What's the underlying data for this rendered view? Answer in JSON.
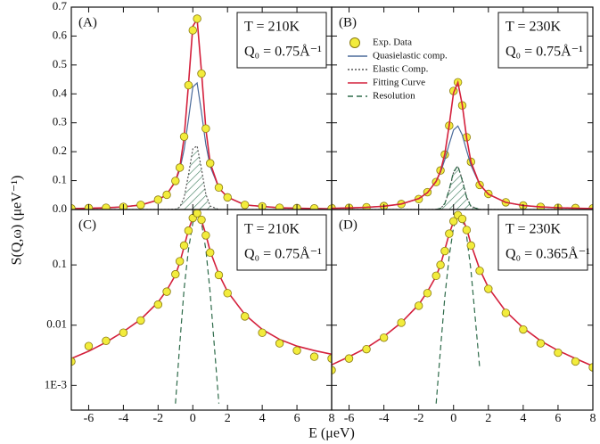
{
  "figure": {
    "xlabel": "E (μeV)",
    "ylabel": "S(Q,ω) (μeV⁻¹)"
  },
  "chart_data": [
    {
      "type": "line",
      "panel_label": "(A)",
      "annotations": [
        "T = 210K",
        "Q₀ = 0.75Å⁻¹"
      ],
      "yscale": "linear",
      "xlim": [
        -7,
        8
      ],
      "ylim": [
        0,
        0.7
      ],
      "xticks": [
        -6,
        -4,
        -2,
        0,
        2,
        4,
        6,
        8
      ],
      "yticks": [
        {
          "value": 0,
          "label": "0.0"
        },
        0.1,
        0.2,
        0.3,
        0.4,
        0.5,
        0.6,
        0.7
      ],
      "show_xtick_labels": false,
      "show_ytick_labels": true,
      "x": [
        -7,
        -6,
        -5,
        -4,
        -3,
        -2,
        -1.5,
        -1,
        -0.75,
        -0.5,
        -0.25,
        0,
        0.25,
        0.5,
        0.75,
        1,
        1.5,
        2,
        3,
        4,
        5,
        6,
        7,
        8
      ],
      "series": [
        {
          "name": "Quasielastic comp.",
          "color": "#4a6a9a",
          "style": "solid",
          "values": [
            0.0031,
            0.0042,
            0.006,
            0.0092,
            0.0157,
            0.0326,
            0.0526,
            0.0964,
            0.138,
            0.207,
            0.312,
            0.424,
            0.438,
            0.336,
            0.225,
            0.15,
            0.0742,
            0.0429,
            0.0157,
            0.0107,
            0.006,
            0.0047,
            0.0034,
            0.0024
          ]
        },
        {
          "name": "Elastic Comp.",
          "color": "#555555",
          "style": "dotted",
          "fill": "hatch",
          "values": [
            0,
            0,
            0,
            0,
            0,
            0,
            0,
            0.001,
            0.0085,
            0.041,
            0.12,
            0.21,
            0.22,
            0.14,
            0.053,
            0.012,
            0.0001,
            0,
            0,
            0,
            0,
            0,
            0,
            0
          ]
        },
        {
          "name": "Fitting Curve",
          "color": "#d4203c",
          "style": "solid",
          "values": [
            0.0031,
            0.0042,
            0.006,
            0.0092,
            0.0157,
            0.0326,
            0.0527,
            0.097,
            0.147,
            0.248,
            0.432,
            0.634,
            0.658,
            0.476,
            0.278,
            0.162,
            0.0743,
            0.0429,
            0.0157,
            0.0107,
            0.006,
            0.0047,
            0.0034,
            0.0024
          ]
        },
        {
          "name": "Exp. Data",
          "color": "#f2ec3c",
          "style": "markers",
          "values": [
            0.004,
            0.005,
            0.006,
            0.009,
            0.016,
            0.034,
            0.051,
            0.099,
            0.145,
            0.252,
            0.43,
            0.62,
            0.66,
            0.47,
            0.28,
            0.16,
            0.076,
            0.042,
            0.016,
            0.011,
            0.006,
            0.005,
            0.004,
            0.003
          ]
        }
      ]
    },
    {
      "type": "line",
      "panel_label": "(B)",
      "annotations": [
        "T = 230K",
        "Q₀ = 0.75Å⁻¹"
      ],
      "legend": "upper left",
      "yscale": "linear",
      "xlim": [
        -7,
        8
      ],
      "ylim": [
        0,
        0.7
      ],
      "xticks": [
        -6,
        -4,
        -2,
        0,
        2,
        4,
        6,
        8
      ],
      "yticks": [
        {
          "value": 0,
          "label": "0.0"
        },
        0.1,
        0.2,
        0.3,
        0.4,
        0.5,
        0.6,
        0.7
      ],
      "show_xtick_labels": false,
      "show_ytick_labels": false,
      "x": [
        -7,
        -6,
        -5,
        -4,
        -3,
        -2,
        -1.5,
        -1,
        -0.75,
        -0.5,
        -0.25,
        0,
        0.25,
        0.5,
        0.75,
        1,
        1.5,
        2,
        3,
        4,
        5,
        6,
        7,
        8
      ],
      "series": [
        {
          "name": "Exp. Data",
          "color": "#f2ec3c",
          "style": "markers",
          "values": [
            0.005,
            0.006,
            0.008,
            0.012,
            0.019,
            0.036,
            0.06,
            0.095,
            0.135,
            0.19,
            0.29,
            0.41,
            0.44,
            0.36,
            0.25,
            0.165,
            0.085,
            0.054,
            0.025,
            0.014,
            0.009,
            0.006,
            0.005,
            0.004
          ]
        },
        {
          "name": "Quasielastic comp.",
          "color": "#4a6a9a",
          "style": "solid",
          "values": [
            0.004,
            0.0054,
            0.0076,
            0.0114,
            0.0192,
            0.0377,
            0.058,
            0.097,
            0.129,
            0.173,
            0.227,
            0.275,
            0.289,
            0.258,
            0.204,
            0.153,
            0.0868,
            0.0529,
            0.0246,
            0.0138,
            0.0088,
            0.0061,
            0.0045,
            0.0034
          ]
        },
        {
          "name": "Elastic Comp.",
          "color": "#555555",
          "style": "dotted",
          "fill": "hatch",
          "values": [
            0,
            0,
            0,
            0,
            0,
            0,
            0,
            0.0004,
            0.0037,
            0.02,
            0.066,
            0.128,
            0.15,
            0.104,
            0.044,
            0.011,
            0.0002,
            0,
            0,
            0,
            0,
            0,
            0,
            0
          ]
        },
        {
          "name": "Fitting Curve",
          "color": "#d4203c",
          "style": "solid",
          "values": [
            0.004,
            0.0054,
            0.0076,
            0.0114,
            0.0192,
            0.0377,
            0.058,
            0.0974,
            0.1327,
            0.193,
            0.293,
            0.403,
            0.439,
            0.362,
            0.248,
            0.164,
            0.087,
            0.0529,
            0.0246,
            0.0138,
            0.0088,
            0.0061,
            0.0045,
            0.0034
          ]
        },
        {
          "name": "Resolution",
          "color": "#2e6b4a",
          "style": "dashed",
          "values": [
            null,
            null,
            null,
            null,
            null,
            null,
            null,
            0.0005,
            0.004,
            0.021,
            0.07,
            0.13,
            0.152,
            0.1,
            0.042,
            0.01,
            0.0002,
            null,
            null,
            null,
            null,
            null,
            null,
            null
          ]
        }
      ]
    },
    {
      "type": "line",
      "panel_label": "(C)",
      "annotations": [
        "T = 210K",
        "Q₀ = 0.75Å⁻¹"
      ],
      "yscale": "log",
      "xlim": [
        -7,
        8
      ],
      "ylim": [
        0.00039,
        0.83
      ],
      "xticks": [
        -6,
        -4,
        -2,
        0,
        2,
        4,
        6,
        8
      ],
      "yticks": [
        {
          "value": 0.001,
          "label": "1E-3"
        },
        0.01,
        0.1
      ],
      "show_xtick_labels": true,
      "show_ytick_labels": true,
      "x": [
        -7,
        -6,
        -5,
        -4,
        -3,
        -2,
        -1.5,
        -1,
        -0.75,
        -0.5,
        -0.25,
        0,
        0.25,
        0.5,
        0.75,
        1,
        1.5,
        2,
        3,
        4,
        5,
        6,
        7,
        8
      ],
      "series": [
        {
          "name": "Resolution",
          "color": "#2e6b4a",
          "style": "dashed",
          "values": [
            null,
            null,
            null,
            null,
            null,
            null,
            null,
            0.0005,
            0.005,
            0.04,
            0.18,
            0.5,
            0.72,
            0.5,
            0.18,
            0.035,
            0.0005,
            null,
            null,
            null,
            null,
            null,
            null,
            null
          ]
        },
        {
          "name": "Fitting Curve",
          "color": "#d4203c",
          "style": "solid",
          "values": [
            0.0028,
            0.0037,
            0.0052,
            0.0078,
            0.0125,
            0.024,
            0.038,
            0.068,
            0.11,
            0.2,
            0.38,
            0.6,
            0.7,
            0.55,
            0.32,
            0.17,
            0.07,
            0.036,
            0.015,
            0.0085,
            0.0058,
            0.0045,
            0.0038,
            0.0033
          ]
        },
        {
          "name": "Exp. Data",
          "color": "#f2ec3c",
          "style": "markers",
          "values": [
            0.0025,
            0.0045,
            0.0055,
            0.0075,
            0.012,
            0.022,
            0.036,
            0.07,
            0.115,
            0.21,
            0.37,
            0.6,
            0.72,
            0.56,
            0.31,
            0.16,
            0.068,
            0.034,
            0.014,
            0.0075,
            0.005,
            0.0038,
            0.003,
            0.0028
          ]
        }
      ]
    },
    {
      "type": "line",
      "panel_label": "(D)",
      "annotations": [
        "T = 230K",
        "Q₀ = 0.365Å⁻¹"
      ],
      "yscale": "log",
      "xlim": [
        -7,
        8
      ],
      "ylim": [
        0.00039,
        0.83
      ],
      "xticks": [
        -6,
        -4,
        -2,
        0,
        2,
        4,
        6,
        8
      ],
      "yticks": [
        {
          "value": 0.001,
          "label": "1E-3"
        },
        0.01,
        0.1
      ],
      "show_xtick_labels": true,
      "show_ytick_labels": false,
      "x": [
        -7,
        -6,
        -5,
        -4,
        -3,
        -2,
        -1.5,
        -1,
        -0.75,
        -0.5,
        -0.25,
        0,
        0.25,
        0.5,
        0.75,
        1,
        1.5,
        2,
        3,
        4,
        5,
        6,
        7,
        8
      ],
      "series": [
        {
          "name": "Resolution",
          "color": "#2e6b4a",
          "style": "dashed",
          "values": [
            null,
            null,
            null,
            null,
            null,
            null,
            null,
            0.0005,
            0.004,
            0.03,
            0.14,
            0.42,
            0.66,
            0.6,
            0.3,
            0.08,
            0.002,
            null,
            null,
            null,
            null,
            null,
            null,
            null
          ]
        },
        {
          "name": "Fitting Curve",
          "color": "#d4203c",
          "style": "solid",
          "values": [
            0.0022,
            0.003,
            0.0042,
            0.0065,
            0.011,
            0.022,
            0.036,
            0.065,
            0.1,
            0.18,
            0.33,
            0.52,
            0.66,
            0.6,
            0.4,
            0.22,
            0.085,
            0.042,
            0.017,
            0.009,
            0.0055,
            0.0038,
            0.0028,
            0.0021
          ]
        },
        {
          "name": "Exp. Data",
          "color": "#f2ec3c",
          "style": "markers",
          "values": [
            0.0018,
            0.0028,
            0.004,
            0.0062,
            0.011,
            0.021,
            0.034,
            0.066,
            0.1,
            0.17,
            0.33,
            0.53,
            0.67,
            0.58,
            0.38,
            0.21,
            0.08,
            0.04,
            0.016,
            0.0085,
            0.005,
            0.0035,
            0.0025,
            0.002
          ]
        }
      ]
    }
  ]
}
